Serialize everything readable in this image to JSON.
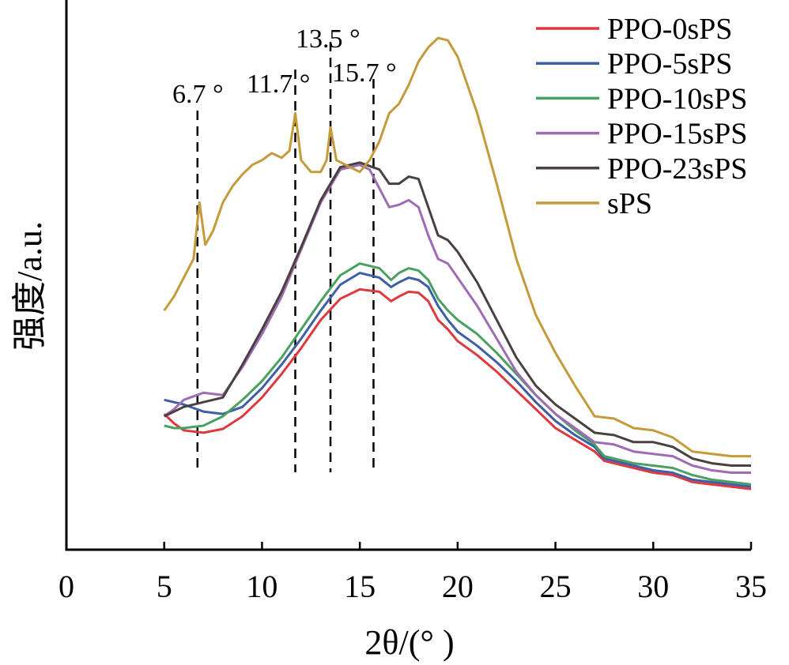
{
  "chart_data": {
    "type": "line",
    "xlabel": "2θ/(° )",
    "ylabel": "强度/a.u.",
    "xlim": [
      0,
      35
    ],
    "ylim": [
      0,
      100
    ],
    "xticks": [
      "0",
      "5",
      "10",
      "15",
      "20",
      "25",
      "30",
      "35"
    ],
    "legend_position": "top-right",
    "grid": false,
    "annotations": [
      {
        "x": 6.7,
        "label": "6.7 °"
      },
      {
        "x": 11.7,
        "label": "11.7 °"
      },
      {
        "x": 13.5,
        "label": "13.5 °"
      },
      {
        "x": 15.7,
        "label": "15.7 °"
      }
    ],
    "series": [
      {
        "name": "PPO-0sPS",
        "color": "#dd3a3f",
        "points": [
          [
            5,
            22
          ],
          [
            5.5,
            20
          ],
          [
            6,
            18.5
          ],
          [
            7,
            18
          ],
          [
            8,
            18.8
          ],
          [
            9,
            21.5
          ],
          [
            10,
            25.5
          ],
          [
            11,
            30.5
          ],
          [
            12,
            36
          ],
          [
            13,
            42
          ],
          [
            14,
            46.5
          ],
          [
            15,
            48.5
          ],
          [
            16,
            48
          ],
          [
            16.6,
            46
          ],
          [
            17,
            47
          ],
          [
            17.5,
            48
          ],
          [
            18,
            47.8
          ],
          [
            18.5,
            46
          ],
          [
            19,
            42
          ],
          [
            19.5,
            40
          ],
          [
            20,
            37.5
          ],
          [
            21,
            34.5
          ],
          [
            22,
            31
          ],
          [
            23,
            27
          ],
          [
            24,
            23
          ],
          [
            25,
            19
          ],
          [
            26,
            16.5
          ],
          [
            27,
            14
          ],
          [
            27.5,
            12
          ],
          [
            28,
            11.5
          ],
          [
            29,
            10.5
          ],
          [
            30,
            9.5
          ],
          [
            31,
            9
          ],
          [
            32,
            7.5
          ],
          [
            33,
            7
          ],
          [
            34,
            6.5
          ],
          [
            35,
            6
          ]
        ]
      },
      {
        "name": "PPO-5sPS",
        "color": "#3c5fa8",
        "points": [
          [
            5,
            25
          ],
          [
            5.5,
            24.5
          ],
          [
            6,
            24
          ],
          [
            7,
            22.5
          ],
          [
            8,
            22
          ],
          [
            9,
            23.5
          ],
          [
            10,
            27.5
          ],
          [
            11,
            32.5
          ],
          [
            12,
            38
          ],
          [
            13,
            44
          ],
          [
            14,
            49.5
          ],
          [
            15,
            52
          ],
          [
            16,
            51
          ],
          [
            16.6,
            49
          ],
          [
            17,
            50
          ],
          [
            17.5,
            51
          ],
          [
            18,
            50.5
          ],
          [
            18.5,
            49
          ],
          [
            19,
            45
          ],
          [
            19.5,
            42
          ],
          [
            20,
            39.5
          ],
          [
            21,
            36.5
          ],
          [
            22,
            33
          ],
          [
            23,
            29
          ],
          [
            24,
            24.5
          ],
          [
            25,
            20.5
          ],
          [
            26,
            17.5
          ],
          [
            27,
            15
          ],
          [
            27.5,
            12.5
          ],
          [
            28,
            12
          ],
          [
            29,
            11
          ],
          [
            30,
            10
          ],
          [
            31,
            9.5
          ],
          [
            32,
            8
          ],
          [
            33,
            7.5
          ],
          [
            34,
            7
          ],
          [
            35,
            6.5
          ]
        ]
      },
      {
        "name": "PPO-10sPS",
        "color": "#4aa060",
        "points": [
          [
            5,
            19.5
          ],
          [
            5.5,
            19
          ],
          [
            6,
            19
          ],
          [
            7,
            19.5
          ],
          [
            8,
            21.5
          ],
          [
            9,
            25
          ],
          [
            10,
            29
          ],
          [
            11,
            34
          ],
          [
            12,
            40
          ],
          [
            13,
            46
          ],
          [
            14,
            51.5
          ],
          [
            15,
            54
          ],
          [
            16,
            53
          ],
          [
            16.6,
            50.5
          ],
          [
            17,
            52
          ],
          [
            17.5,
            53
          ],
          [
            18,
            52.5
          ],
          [
            18.5,
            50.5
          ],
          [
            19,
            46.5
          ],
          [
            19.5,
            44
          ],
          [
            20,
            42
          ],
          [
            21,
            39
          ],
          [
            22,
            35
          ],
          [
            23,
            30.5
          ],
          [
            24,
            26
          ],
          [
            25,
            22
          ],
          [
            26,
            18.5
          ],
          [
            27,
            15.5
          ],
          [
            27.5,
            13
          ],
          [
            28,
            12.5
          ],
          [
            29,
            11.5
          ],
          [
            30,
            11
          ],
          [
            31,
            10.5
          ],
          [
            32,
            9
          ],
          [
            33,
            8
          ],
          [
            34,
            7.5
          ],
          [
            35,
            7
          ]
        ]
      },
      {
        "name": "PPO-15sPS",
        "color": "#a06bb5",
        "points": [
          [
            5,
            21.5
          ],
          [
            5.5,
            23
          ],
          [
            6,
            25
          ],
          [
            7,
            26.5
          ],
          [
            8,
            26
          ],
          [
            9,
            32
          ],
          [
            10,
            39
          ],
          [
            11,
            47
          ],
          [
            12,
            57
          ],
          [
            13,
            67
          ],
          [
            14,
            74
          ],
          [
            15,
            75
          ],
          [
            15.5,
            74
          ],
          [
            16,
            70
          ],
          [
            16.5,
            66
          ],
          [
            17,
            66.5
          ],
          [
            17.5,
            67.5
          ],
          [
            18,
            66
          ],
          [
            18.5,
            60
          ],
          [
            19,
            55
          ],
          [
            19.5,
            54
          ],
          [
            20,
            51
          ],
          [
            21,
            45
          ],
          [
            22,
            38
          ],
          [
            23,
            31
          ],
          [
            24,
            26
          ],
          [
            25,
            22
          ],
          [
            26,
            19
          ],
          [
            27,
            16
          ],
          [
            28,
            15.5
          ],
          [
            29,
            14
          ],
          [
            30,
            13.5
          ],
          [
            31,
            13
          ],
          [
            32,
            11
          ],
          [
            33,
            10
          ],
          [
            34,
            9.5
          ],
          [
            35,
            9.5
          ]
        ]
      },
      {
        "name": "PPO-23sPS",
        "color": "#4a4040",
        "points": [
          [
            5,
            21.5
          ],
          [
            5.5,
            22.5
          ],
          [
            6,
            23.5
          ],
          [
            7,
            24.5
          ],
          [
            8,
            25.5
          ],
          [
            9,
            32.5
          ],
          [
            10,
            40
          ],
          [
            11,
            48
          ],
          [
            12,
            57.5
          ],
          [
            13,
            67.5
          ],
          [
            14,
            74.5
          ],
          [
            15,
            75.5
          ],
          [
            16,
            74
          ],
          [
            16.5,
            71
          ],
          [
            17,
            71
          ],
          [
            17.5,
            72.5
          ],
          [
            18,
            72
          ],
          [
            18.5,
            66
          ],
          [
            19,
            60
          ],
          [
            19.5,
            59
          ],
          [
            20,
            56.5
          ],
          [
            21,
            50
          ],
          [
            22,
            42
          ],
          [
            23,
            34
          ],
          [
            24,
            28
          ],
          [
            25,
            24
          ],
          [
            26,
            21
          ],
          [
            27,
            18
          ],
          [
            28,
            17.5
          ],
          [
            29,
            16
          ],
          [
            30,
            16
          ],
          [
            31,
            15
          ],
          [
            32,
            12.5
          ],
          [
            33,
            11.5
          ],
          [
            34,
            11
          ],
          [
            35,
            11
          ]
        ]
      },
      {
        "name": "sPS",
        "color": "#c49a3a",
        "points": [
          [
            5,
            44
          ],
          [
            5.5,
            47
          ],
          [
            6,
            51
          ],
          [
            6.5,
            55
          ],
          [
            6.8,
            67
          ],
          [
            7.1,
            58
          ],
          [
            7.5,
            61
          ],
          [
            8,
            67
          ],
          [
            8.5,
            70.5
          ],
          [
            9,
            73
          ],
          [
            9.5,
            75
          ],
          [
            10,
            76
          ],
          [
            10.5,
            77.5
          ],
          [
            11,
            76.5
          ],
          [
            11.4,
            78
          ],
          [
            11.7,
            86
          ],
          [
            12,
            76
          ],
          [
            12.5,
            73.5
          ],
          [
            13,
            73.5
          ],
          [
            13.3,
            76
          ],
          [
            13.5,
            83
          ],
          [
            13.8,
            76
          ],
          [
            14.5,
            74.5
          ],
          [
            15,
            73.5
          ],
          [
            15.5,
            76
          ],
          [
            16,
            80
          ],
          [
            16.5,
            86
          ],
          [
            17,
            88
          ],
          [
            17.5,
            92
          ],
          [
            18,
            97
          ],
          [
            18.5,
            100
          ],
          [
            19,
            102
          ],
          [
            19.5,
            101.5
          ],
          [
            20,
            98
          ],
          [
            21,
            86
          ],
          [
            22,
            71
          ],
          [
            23,
            55
          ],
          [
            24,
            43
          ],
          [
            25,
            35
          ],
          [
            26,
            28
          ],
          [
            27,
            21.5
          ],
          [
            28,
            21
          ],
          [
            29,
            19
          ],
          [
            30,
            18.5
          ],
          [
            31,
            17
          ],
          [
            32,
            14
          ],
          [
            33,
            13.5
          ],
          [
            34,
            13
          ],
          [
            35,
            13
          ]
        ]
      }
    ]
  }
}
